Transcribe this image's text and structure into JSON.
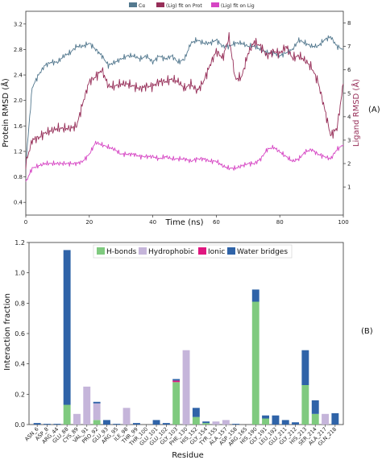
{
  "panel_labels": {
    "a": "(A)",
    "b": "(B)"
  },
  "chart_data": [
    {
      "type": "line",
      "x_axis": {
        "label": "Time (ns)",
        "range": [
          0,
          100
        ],
        "ticks": [
          "0",
          "20",
          "40",
          "60",
          "80",
          "100"
        ]
      },
      "y_left": {
        "label": "Protein RMSD (Å)",
        "range": [
          0.2,
          3.4
        ],
        "ticks": [
          "0.4",
          "0.8",
          "1.2",
          "1.6",
          "2.0",
          "2.4",
          "2.8",
          "3.2"
        ]
      },
      "y_right": {
        "label": "Ligand RMSD (Å)",
        "range": [
          -0.2,
          8.5
        ],
        "ticks": [
          "1",
          "2",
          "3",
          "4",
          "5",
          "6",
          "7",
          "8"
        ]
      },
      "legend": {
        "position": "top",
        "entries": [
          "Cα",
          "(Lig) fit on Prot",
          "(Lig) fit on Lig"
        ]
      },
      "colors": {
        "protein": "#54798f",
        "lig_prot": "#962e58",
        "lig_lig": "#d646c4"
      },
      "series": [
        {
          "name": "Cα",
          "axis": "left",
          "x": [
            0,
            2,
            4,
            6,
            8,
            10,
            12,
            14,
            16,
            18,
            20,
            22,
            24,
            26,
            28,
            30,
            32,
            34,
            36,
            38,
            40,
            42,
            44,
            46,
            48,
            50,
            52,
            54,
            56,
            58,
            60,
            62,
            64,
            66,
            68,
            70,
            72,
            74,
            76,
            78,
            80,
            82,
            84,
            86,
            88,
            90,
            92,
            94,
            96,
            98,
            100
          ],
          "values": [
            1.0,
            2.2,
            2.4,
            2.55,
            2.6,
            2.6,
            2.7,
            2.75,
            2.85,
            2.85,
            2.9,
            2.8,
            2.7,
            2.55,
            2.6,
            2.65,
            2.7,
            2.7,
            2.65,
            2.7,
            2.6,
            2.7,
            2.65,
            2.7,
            2.6,
            2.65,
            2.9,
            2.95,
            2.9,
            2.9,
            2.95,
            2.85,
            2.85,
            2.9,
            2.9,
            2.85,
            2.85,
            2.8,
            2.75,
            2.75,
            2.7,
            2.75,
            2.8,
            2.95,
            2.9,
            2.85,
            2.85,
            2.95,
            3.0,
            2.85,
            2.8
          ]
        },
        {
          "name": "(Lig) fit on Prot",
          "axis": "right",
          "x": [
            0,
            2,
            4,
            6,
            8,
            10,
            12,
            14,
            16,
            18,
            20,
            22,
            24,
            26,
            28,
            30,
            32,
            34,
            36,
            38,
            40,
            42,
            44,
            46,
            48,
            50,
            52,
            54,
            56,
            58,
            60,
            62,
            64,
            66,
            68,
            70,
            72,
            74,
            76,
            78,
            80,
            82,
            84,
            86,
            88,
            90,
            92,
            94,
            96,
            98,
            100
          ],
          "values": [
            2.0,
            3.0,
            3.1,
            3.3,
            3.4,
            3.5,
            3.5,
            3.5,
            3.6,
            4.6,
            5.5,
            5.7,
            6.0,
            5.3,
            5.3,
            5.4,
            5.4,
            5.3,
            5.2,
            5.3,
            5.3,
            5.5,
            5.5,
            5.6,
            5.5,
            5.2,
            5.4,
            5.1,
            5.5,
            6.2,
            6.8,
            6.5,
            7.4,
            5.6,
            5.7,
            6.7,
            7.2,
            7.0,
            6.6,
            6.8,
            6.7,
            7.0,
            6.5,
            6.6,
            6.4,
            6.1,
            5.5,
            4.4,
            3.2,
            3.5,
            5.4
          ]
        },
        {
          "name": "(Lig) fit on Lig",
          "axis": "right",
          "x": [
            0,
            2,
            4,
            6,
            8,
            10,
            12,
            14,
            16,
            18,
            20,
            22,
            24,
            26,
            28,
            30,
            32,
            34,
            36,
            38,
            40,
            42,
            44,
            46,
            48,
            50,
            52,
            54,
            56,
            58,
            60,
            62,
            64,
            66,
            68,
            70,
            72,
            74,
            76,
            78,
            80,
            82,
            84,
            86,
            88,
            90,
            92,
            94,
            96,
            98,
            100
          ],
          "values": [
            1.2,
            1.8,
            1.9,
            2.0,
            2.0,
            2.0,
            2.0,
            2.0,
            2.0,
            2.1,
            2.4,
            2.9,
            2.8,
            2.7,
            2.6,
            2.4,
            2.4,
            2.4,
            2.3,
            2.3,
            2.3,
            2.2,
            2.3,
            2.2,
            2.2,
            2.2,
            2.1,
            2.2,
            2.2,
            2.1,
            2.1,
            1.9,
            1.8,
            1.8,
            1.9,
            2.0,
            2.0,
            2.2,
            2.6,
            2.7,
            2.5,
            2.3,
            2.1,
            2.2,
            2.5,
            2.6,
            2.4,
            2.3,
            2.2,
            2.6,
            2.8
          ]
        }
      ]
    },
    {
      "type": "bar",
      "stacked": true,
      "xlabel": "Residue",
      "ylabel": "Interaction fraction",
      "ylim": [
        0,
        1.2
      ],
      "yticks": [
        "0.0",
        "0.2",
        "0.4",
        "0.6",
        "0.8",
        "1.0",
        "1.2"
      ],
      "legend": {
        "position": "top-right",
        "entries": [
          "H-bonds",
          "Hydrophobic",
          "Ionic",
          "Water bridges"
        ]
      },
      "colors": {
        "hbonds": "#7fca7f",
        "hydrophobic": "#c5b5da",
        "ionic": "#e0177f",
        "water": "#2f63a8"
      },
      "categories": [
        "ASN_6",
        "ASP_8",
        "ARG_44",
        "GLU_88",
        "CYS_89",
        "VAL_91",
        "PRO_92",
        "GLU_93",
        "ARG_95",
        "ILE_98",
        "THR_99",
        "THR_100",
        "GLU_101",
        "GLU_102",
        "GLY_103",
        "PHE_130",
        "HIS_152",
        "GLY_154",
        "TYR_155",
        "ALA_157",
        "ASP_158",
        "ARG_165",
        "HIS_190",
        "GLY_191",
        "LEU_192",
        "GLU_211",
        "GLY_212",
        "HIS_213",
        "SER_214",
        "ALA_217",
        "GLN_218"
      ],
      "series": [
        {
          "name": "H-bonds",
          "values": [
            0,
            0,
            0,
            0.13,
            0,
            0,
            0.03,
            0,
            0,
            0,
            0,
            0,
            0,
            0,
            0.28,
            0,
            0.05,
            0.01,
            0,
            0,
            0,
            0,
            0.81,
            0.04,
            0,
            0,
            0,
            0.26,
            0.07,
            0,
            0
          ]
        },
        {
          "name": "Hydrophobic",
          "values": [
            0,
            0,
            0,
            0,
            0.07,
            0.25,
            0.11,
            0,
            0,
            0.11,
            0,
            0,
            0,
            0,
            0,
            0.49,
            0,
            0,
            0.02,
            0.03,
            0,
            0,
            0,
            0,
            0,
            0,
            0,
            0,
            0,
            0.07,
            0
          ]
        },
        {
          "name": "Ionic",
          "values": [
            0,
            0,
            0,
            0,
            0,
            0,
            0,
            0,
            0,
            0,
            0,
            0,
            0,
            0,
            0.01,
            0,
            0,
            0,
            0,
            0,
            0,
            0,
            0,
            0,
            0,
            0,
            0,
            0,
            0,
            0,
            0
          ]
        },
        {
          "name": "Water bridges",
          "values": [
            0.01,
            0.005,
            0.005,
            1.02,
            0,
            0,
            0.01,
            0.03,
            0.005,
            0,
            0.01,
            0,
            0.03,
            0.01,
            0.01,
            0,
            0.06,
            0.01,
            0,
            0,
            0.005,
            0,
            0.08,
            0.02,
            0.06,
            0.03,
            0.015,
            0.23,
            0.09,
            0,
            0.075
          ]
        }
      ]
    }
  ]
}
